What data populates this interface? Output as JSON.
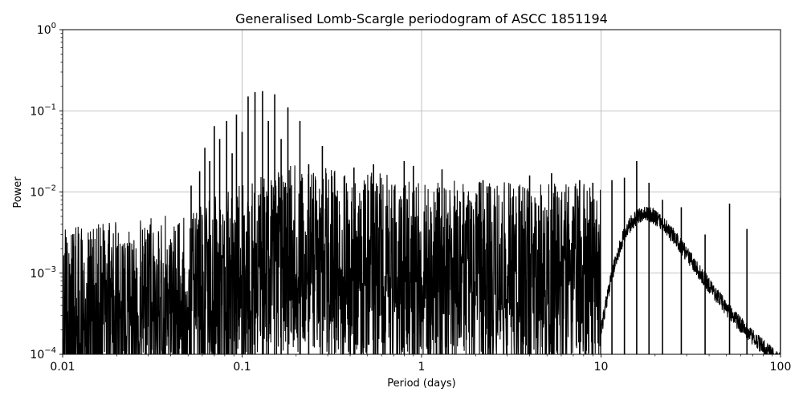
{
  "chart_data": {
    "type": "line",
    "title": "Generalised Lomb-Scargle periodogram of ASCC 1851194",
    "xlabel": "Period (days)",
    "ylabel": "Power",
    "xscale": "log",
    "yscale": "log",
    "xlim": [
      0.01,
      100
    ],
    "ylim": [
      0.0001,
      1
    ],
    "grid": true,
    "line_color": "#000000",
    "x_ticks": [
      {
        "value": 0.01,
        "label": "0.01"
      },
      {
        "value": 0.1,
        "label": "0.1"
      },
      {
        "value": 1,
        "label": "1"
      },
      {
        "value": 10,
        "label": "10"
      },
      {
        "value": 100,
        "label": "100"
      }
    ],
    "y_ticks": [
      {
        "value": 0.0001,
        "base": "10",
        "exp": "−4"
      },
      {
        "value": 0.001,
        "base": "10",
        "exp": "−3"
      },
      {
        "value": 0.01,
        "base": "10",
        "exp": "−2"
      },
      {
        "value": 0.1,
        "base": "10",
        "exp": "−1"
      },
      {
        "value": 1,
        "base": "10",
        "exp": "0"
      }
    ],
    "peaks": [
      {
        "period": 0.052,
        "power": 0.012
      },
      {
        "period": 0.058,
        "power": 0.018
      },
      {
        "period": 0.062,
        "power": 0.035
      },
      {
        "period": 0.066,
        "power": 0.024
      },
      {
        "period": 0.07,
        "power": 0.065
      },
      {
        "period": 0.075,
        "power": 0.045
      },
      {
        "period": 0.082,
        "power": 0.075
      },
      {
        "period": 0.088,
        "power": 0.03
      },
      {
        "period": 0.093,
        "power": 0.09
      },
      {
        "period": 0.1,
        "power": 0.055
      },
      {
        "period": 0.108,
        "power": 0.15
      },
      {
        "period": 0.118,
        "power": 0.17
      },
      {
        "period": 0.13,
        "power": 0.175
      },
      {
        "period": 0.14,
        "power": 0.075
      },
      {
        "period": 0.152,
        "power": 0.16
      },
      {
        "period": 0.165,
        "power": 0.045
      },
      {
        "period": 0.18,
        "power": 0.11
      },
      {
        "period": 0.21,
        "power": 0.075
      },
      {
        "period": 0.235,
        "power": 0.022
      },
      {
        "period": 0.28,
        "power": 0.037
      },
      {
        "period": 0.42,
        "power": 0.02
      },
      {
        "period": 0.54,
        "power": 0.022
      },
      {
        "period": 0.8,
        "power": 0.024
      },
      {
        "period": 0.9,
        "power": 0.021
      },
      {
        "period": 1.3,
        "power": 0.019
      },
      {
        "period": 2.2,
        "power": 0.014
      },
      {
        "period": 4.0,
        "power": 0.016
      },
      {
        "period": 5.3,
        "power": 0.017
      },
      {
        "period": 7.6,
        "power": 0.014
      },
      {
        "period": 9.0,
        "power": 0.013
      },
      {
        "period": 11.5,
        "power": 0.014
      },
      {
        "period": 13.5,
        "power": 0.015
      },
      {
        "period": 15.8,
        "power": 0.024
      },
      {
        "period": 18.5,
        "power": 0.013
      },
      {
        "period": 22.0,
        "power": 0.008
      },
      {
        "period": 28.0,
        "power": 0.0065
      },
      {
        "period": 38.0,
        "power": 0.003
      },
      {
        "period": 52.0,
        "power": 0.0072
      },
      {
        "period": 65.0,
        "power": 0.0035
      },
      {
        "period": 100.0,
        "power": 0.0085
      }
    ]
  }
}
